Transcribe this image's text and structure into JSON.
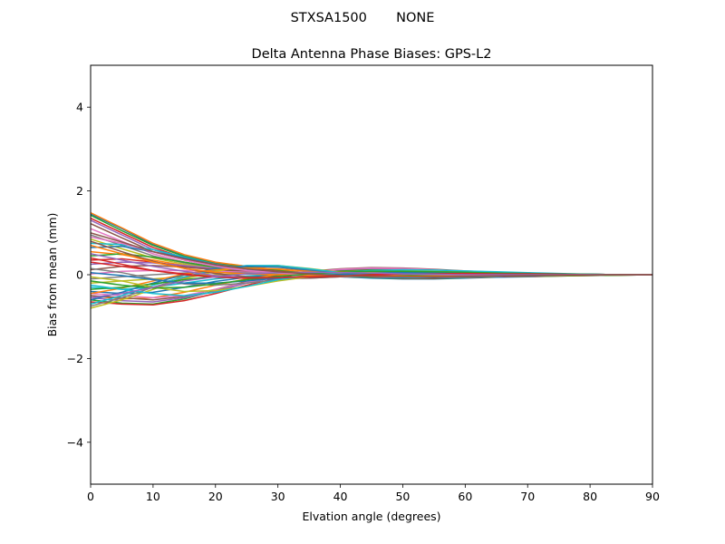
{
  "suptitle": "STXSA1500       NONE",
  "chart_data": {
    "type": "line",
    "title": "Delta Antenna Phase Biases: GPS-L2",
    "xlabel": "Elvation angle (degrees)",
    "ylabel": "Bias from mean (mm)",
    "xlim": [
      0,
      90
    ],
    "ylim": [
      -5,
      5
    ],
    "grid": false,
    "x_ticks": [
      0,
      10,
      20,
      30,
      40,
      50,
      60,
      70,
      80,
      90
    ],
    "x_tick_labels": [
      "0",
      "10",
      "20",
      "30",
      "40",
      "50",
      "60",
      "70",
      "80",
      "90"
    ],
    "y_ticks": [
      -4,
      -2,
      0,
      2,
      4
    ],
    "y_tick_labels": [
      "−4",
      "−2",
      "0",
      "2",
      "4"
    ],
    "colors": [
      "#1f77b4",
      "#ff7f0e",
      "#2ca02c",
      "#d62728",
      "#9467bd",
      "#8c564b",
      "#e377c2",
      "#7f7f7f",
      "#bcbd22",
      "#17becf"
    ],
    "x": [
      0,
      5,
      10,
      15,
      20,
      25,
      30,
      35,
      40,
      45,
      50,
      55,
      60,
      65,
      70,
      75,
      80,
      85,
      90
    ],
    "series": [
      {
        "values": [
          1.45,
          1.1,
          0.72,
          0.45,
          0.28,
          0.2,
          0.1,
          0.02,
          -0.05,
          -0.08,
          -0.1,
          -0.1,
          -0.08,
          -0.06,
          -0.05,
          -0.03,
          -0.02,
          -0.01,
          0
        ]
      },
      {
        "values": [
          1.48,
          1.12,
          0.75,
          0.48,
          0.3,
          0.2,
          0.12,
          0.04,
          -0.02,
          -0.05,
          -0.08,
          -0.08,
          -0.07,
          -0.05,
          -0.04,
          -0.03,
          -0.02,
          -0.01,
          0
        ]
      },
      {
        "values": [
          1.42,
          1.05,
          0.7,
          0.44,
          0.26,
          0.18,
          0.1,
          0.03,
          -0.04,
          -0.07,
          -0.09,
          -0.09,
          -0.07,
          -0.05,
          -0.04,
          -0.03,
          -0.02,
          -0.01,
          0
        ]
      },
      {
        "values": [
          1.35,
          1.0,
          0.65,
          0.4,
          0.25,
          0.16,
          0.08,
          0.02,
          -0.03,
          -0.06,
          -0.08,
          -0.08,
          -0.06,
          -0.05,
          -0.04,
          -0.02,
          -0.01,
          0,
          0
        ]
      },
      {
        "values": [
          1.3,
          0.95,
          0.6,
          0.38,
          0.22,
          0.14,
          0.07,
          0.01,
          -0.03,
          -0.06,
          -0.07,
          -0.07,
          -0.06,
          -0.04,
          -0.03,
          -0.02,
          -0.01,
          0,
          0
        ]
      },
      {
        "values": [
          1.22,
          0.88,
          0.55,
          0.35,
          0.2,
          0.13,
          0.06,
          0.01,
          -0.03,
          -0.05,
          -0.07,
          -0.07,
          -0.05,
          -0.04,
          -0.03,
          -0.02,
          -0.01,
          0,
          0
        ]
      },
      {
        "values": [
          1.1,
          0.8,
          0.5,
          0.3,
          0.18,
          0.12,
          0.05,
          0.0,
          -0.04,
          -0.06,
          -0.07,
          -0.06,
          -0.05,
          -0.04,
          -0.03,
          -0.02,
          -0.01,
          0,
          0
        ]
      },
      {
        "values": [
          0.95,
          0.7,
          0.45,
          0.28,
          0.16,
          0.1,
          0.05,
          0.0,
          -0.04,
          -0.05,
          -0.06,
          -0.06,
          -0.05,
          -0.03,
          -0.02,
          -0.02,
          -0.01,
          0,
          0
        ]
      },
      {
        "values": [
          0.85,
          0.62,
          0.4,
          0.25,
          0.15,
          0.1,
          0.04,
          0.0,
          -0.03,
          -0.05,
          -0.06,
          -0.05,
          -0.04,
          -0.03,
          -0.02,
          -0.01,
          -0.01,
          0,
          0
        ]
      },
      {
        "values": [
          0.75,
          0.72,
          0.6,
          0.42,
          0.25,
          0.15,
          0.06,
          0.0,
          -0.04,
          -0.06,
          -0.07,
          -0.06,
          -0.05,
          -0.04,
          -0.03,
          -0.02,
          -0.01,
          0,
          0
        ]
      },
      {
        "values": [
          0.65,
          0.68,
          0.55,
          0.4,
          0.24,
          0.14,
          0.06,
          0.0,
          -0.04,
          -0.06,
          -0.06,
          -0.06,
          -0.05,
          -0.03,
          -0.02,
          -0.02,
          -0.01,
          0,
          0
        ]
      },
      {
        "values": [
          0.55,
          0.48,
          0.35,
          0.22,
          0.12,
          0.06,
          0.02,
          0.0,
          -0.02,
          -0.04,
          -0.05,
          -0.05,
          -0.04,
          -0.03,
          -0.02,
          -0.01,
          -0.01,
          0,
          0
        ]
      },
      {
        "values": [
          0.45,
          0.5,
          0.42,
          0.3,
          0.18,
          0.1,
          0.04,
          0.0,
          -0.03,
          -0.05,
          -0.05,
          -0.05,
          -0.04,
          -0.03,
          -0.02,
          -0.01,
          -0.01,
          0,
          0
        ]
      },
      {
        "values": [
          0.35,
          0.38,
          0.3,
          0.2,
          0.12,
          0.07,
          0.03,
          0.0,
          -0.02,
          -0.04,
          -0.04,
          -0.04,
          -0.03,
          -0.02,
          -0.02,
          -0.01,
          0,
          0,
          0
        ]
      },
      {
        "values": [
          0.25,
          0.3,
          0.28,
          0.22,
          0.15,
          0.1,
          0.05,
          0.01,
          -0.02,
          -0.04,
          -0.05,
          -0.04,
          -0.03,
          -0.03,
          -0.02,
          -0.01,
          0,
          0,
          0
        ]
      },
      {
        "values": [
          0.12,
          0.2,
          0.22,
          0.18,
          0.12,
          0.08,
          0.04,
          0.01,
          -0.02,
          -0.03,
          -0.04,
          -0.04,
          -0.03,
          -0.02,
          -0.01,
          -0.01,
          0,
          0,
          0
        ]
      },
      {
        "values": [
          0.02,
          0.08,
          0.1,
          0.1,
          0.08,
          0.06,
          0.03,
          0.0,
          -0.02,
          -0.03,
          -0.03,
          -0.03,
          -0.02,
          -0.02,
          -0.01,
          -0.01,
          0,
          0,
          0
        ]
      },
      {
        "values": [
          -0.1,
          -0.05,
          0.0,
          0.04,
          0.05,
          0.04,
          0.02,
          0.0,
          -0.01,
          -0.02,
          -0.02,
          -0.02,
          -0.02,
          -0.01,
          -0.01,
          0,
          0,
          0,
          0
        ]
      },
      {
        "values": [
          -0.2,
          -0.15,
          -0.1,
          -0.05,
          0.0,
          0.02,
          0.02,
          0.01,
          0.0,
          -0.01,
          -0.02,
          -0.02,
          -0.01,
          -0.01,
          -0.01,
          0,
          0,
          0,
          0
        ]
      },
      {
        "values": [
          -0.3,
          -0.35,
          -0.3,
          -0.2,
          -0.1,
          -0.03,
          0.01,
          0.03,
          0.04,
          0.04,
          0.03,
          0.02,
          0.01,
          0.01,
          0,
          0,
          0,
          0,
          0
        ]
      },
      {
        "values": [
          -0.4,
          -0.45,
          -0.42,
          -0.3,
          -0.16,
          -0.06,
          0.0,
          0.04,
          0.06,
          0.06,
          0.05,
          0.04,
          0.03,
          0.02,
          0.01,
          0,
          0,
          0,
          0
        ]
      },
      {
        "values": [
          -0.5,
          -0.58,
          -0.55,
          -0.42,
          -0.25,
          -0.1,
          0.0,
          0.06,
          0.08,
          0.08,
          0.07,
          0.05,
          0.04,
          0.02,
          0.01,
          0.01,
          0,
          0,
          0
        ]
      },
      {
        "values": [
          -0.6,
          -0.68,
          -0.7,
          -0.58,
          -0.38,
          -0.18,
          -0.04,
          0.05,
          0.1,
          0.12,
          0.11,
          0.09,
          0.06,
          0.04,
          0.02,
          0.01,
          0,
          0,
          0
        ]
      },
      {
        "values": [
          -0.65,
          -0.7,
          -0.72,
          -0.62,
          -0.45,
          -0.25,
          -0.08,
          0.05,
          0.12,
          0.15,
          0.14,
          0.11,
          0.08,
          0.05,
          0.03,
          0.01,
          0,
          0,
          0
        ]
      },
      {
        "values": [
          -0.55,
          -0.62,
          -0.65,
          -0.55,
          -0.4,
          -0.2,
          -0.05,
          0.06,
          0.12,
          0.15,
          0.15,
          0.12,
          0.08,
          0.05,
          0.03,
          0.01,
          0,
          0,
          0
        ]
      },
      {
        "values": [
          -0.5,
          -0.55,
          -0.6,
          -0.52,
          -0.35,
          -0.16,
          -0.02,
          0.08,
          0.14,
          0.17,
          0.16,
          0.13,
          0.09,
          0.06,
          0.03,
          0.01,
          0,
          0,
          0
        ]
      },
      {
        "values": [
          -0.45,
          -0.5,
          -0.55,
          -0.5,
          -0.35,
          -0.18,
          -0.05,
          0.06,
          0.13,
          0.16,
          0.15,
          0.12,
          0.08,
          0.05,
          0.03,
          0.01,
          0,
          0,
          0
        ]
      },
      {
        "values": [
          -0.75,
          -0.55,
          -0.3,
          -0.08,
          0.1,
          0.2,
          0.2,
          0.12,
          0.04,
          -0.02,
          -0.05,
          -0.06,
          -0.05,
          -0.04,
          -0.03,
          -0.02,
          -0.01,
          0,
          0
        ]
      },
      {
        "values": [
          -0.8,
          -0.6,
          -0.35,
          -0.1,
          0.08,
          0.2,
          0.22,
          0.15,
          0.06,
          0.0,
          -0.04,
          -0.05,
          -0.05,
          -0.04,
          -0.03,
          -0.02,
          -0.01,
          0,
          0
        ]
      },
      {
        "values": [
          -0.7,
          -0.5,
          -0.25,
          -0.05,
          0.12,
          0.22,
          0.22,
          0.14,
          0.05,
          -0.01,
          -0.05,
          -0.06,
          -0.05,
          -0.04,
          -0.03,
          -0.02,
          -0.01,
          0,
          0
        ]
      },
      {
        "values": [
          -0.6,
          -0.42,
          -0.2,
          0.0,
          0.15,
          0.2,
          0.18,
          0.1,
          0.03,
          -0.02,
          -0.05,
          -0.06,
          -0.05,
          -0.04,
          -0.03,
          -0.02,
          -0.01,
          0,
          0
        ]
      },
      {
        "values": [
          -0.45,
          -0.32,
          -0.15,
          0.02,
          0.12,
          0.16,
          0.14,
          0.08,
          0.02,
          -0.02,
          -0.04,
          -0.05,
          -0.04,
          -0.03,
          -0.02,
          -0.02,
          -0.01,
          0,
          0
        ]
      },
      {
        "values": [
          -0.35,
          -0.3,
          -0.22,
          -0.12,
          -0.04,
          0.02,
          0.05,
          0.05,
          0.04,
          0.02,
          0.0,
          -0.01,
          -0.02,
          -0.02,
          -0.01,
          -0.01,
          0,
          0,
          0
        ]
      },
      {
        "values": [
          0.3,
          0.2,
          0.1,
          0.02,
          -0.05,
          -0.08,
          -0.08,
          -0.06,
          -0.03,
          0.0,
          0.03,
          0.04,
          0.04,
          0.03,
          0.02,
          0.01,
          0,
          0,
          0
        ]
      },
      {
        "values": [
          0.5,
          0.35,
          0.2,
          0.08,
          -0.02,
          -0.08,
          -0.1,
          -0.08,
          -0.05,
          -0.02,
          0.02,
          0.04,
          0.05,
          0.04,
          0.03,
          0.02,
          0.01,
          0,
          0
        ]
      },
      {
        "values": [
          0.8,
          0.55,
          0.32,
          0.15,
          0.03,
          -0.05,
          -0.08,
          -0.08,
          -0.05,
          -0.02,
          0.02,
          0.04,
          0.05,
          0.05,
          0.04,
          0.02,
          0.01,
          0,
          0
        ]
      },
      {
        "values": [
          0.9,
          0.75,
          0.55,
          0.35,
          0.2,
          0.1,
          0.04,
          0.0,
          -0.03,
          -0.04,
          -0.04,
          -0.03,
          -0.02,
          -0.01,
          -0.01,
          0,
          0,
          0,
          0
        ]
      },
      {
        "values": [
          0.15,
          0.05,
          -0.1,
          -0.22,
          -0.25,
          -0.2,
          -0.12,
          -0.05,
          0.0,
          0.04,
          0.06,
          0.07,
          0.06,
          0.05,
          0.04,
          0.02,
          0.01,
          0,
          0
        ]
      },
      {
        "values": [
          -0.05,
          -0.15,
          -0.3,
          -0.4,
          -0.38,
          -0.28,
          -0.15,
          -0.05,
          0.02,
          0.07,
          0.09,
          0.09,
          0.08,
          0.06,
          0.04,
          0.02,
          0.01,
          0,
          0
        ]
      },
      {
        "values": [
          -0.25,
          -0.35,
          -0.45,
          -0.5,
          -0.42,
          -0.28,
          -0.12,
          -0.02,
          0.05,
          0.1,
          0.12,
          0.11,
          0.09,
          0.07,
          0.05,
          0.03,
          0.01,
          0,
          0
        ]
      },
      {
        "values": [
          0.05,
          -0.02,
          -0.12,
          -0.2,
          -0.2,
          -0.15,
          -0.08,
          -0.03,
          0.01,
          0.04,
          0.05,
          0.05,
          0.05,
          0.04,
          0.03,
          0.02,
          0.01,
          0,
          0
        ]
      },
      {
        "values": [
          0.7,
          0.5,
          0.3,
          0.15,
          0.06,
          0.02,
          0.0,
          -0.02,
          -0.03,
          -0.04,
          -0.04,
          -0.03,
          -0.03,
          -0.02,
          -0.01,
          -0.01,
          0,
          0,
          0
        ]
      },
      {
        "values": [
          -0.15,
          -0.25,
          -0.32,
          -0.3,
          -0.22,
          -0.12,
          -0.04,
          0.02,
          0.06,
          0.08,
          0.08,
          0.07,
          0.06,
          0.04,
          0.03,
          0.02,
          0.01,
          0,
          0
        ]
      },
      {
        "values": [
          0.4,
          0.25,
          0.1,
          0.0,
          -0.06,
          -0.08,
          -0.07,
          -0.05,
          -0.03,
          -0.01,
          0.01,
          0.02,
          0.03,
          0.02,
          0.02,
          0.01,
          0,
          0,
          0
        ]
      },
      {
        "values": [
          -0.55,
          -0.45,
          -0.3,
          -0.15,
          -0.05,
          0.02,
          0.05,
          0.06,
          0.05,
          0.04,
          0.02,
          0.01,
          0.0,
          0.0,
          0,
          0,
          0,
          0,
          0
        ]
      },
      {
        "values": [
          1.0,
          0.78,
          0.55,
          0.38,
          0.24,
          0.14,
          0.07,
          0.02,
          -0.02,
          -0.04,
          -0.05,
          -0.05,
          -0.04,
          -0.03,
          -0.02,
          -0.01,
          -0.01,
          0,
          0
        ]
      }
    ]
  }
}
